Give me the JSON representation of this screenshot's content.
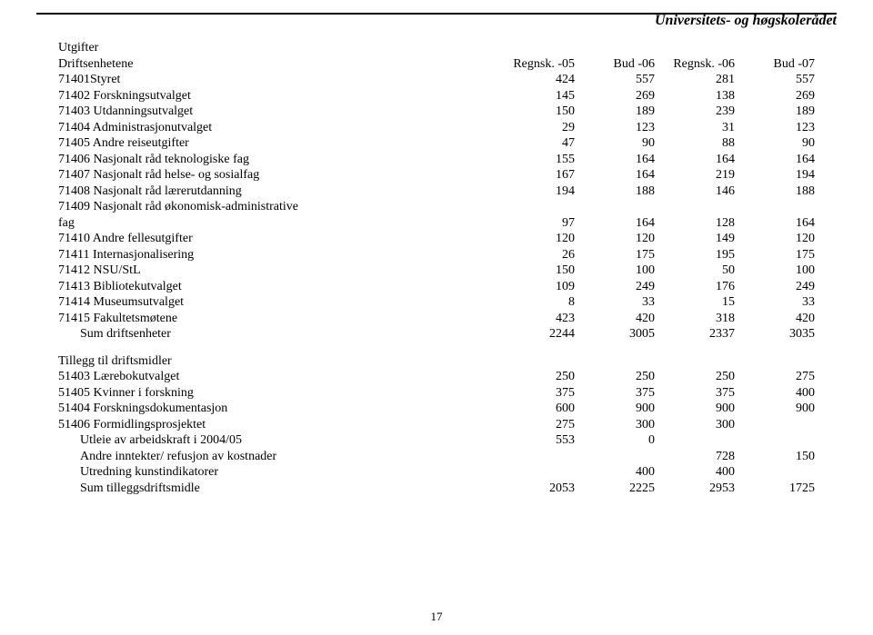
{
  "header_title": "Universitets- og høgskolerådet",
  "columns": {
    "c1": "Regnsk. -05",
    "c2": "Bud -06",
    "c3": "Regnsk. -06",
    "c4": "Bud -07"
  },
  "section1_title": "Utgifter",
  "section1_subtitle": "Driftsenhetene",
  "rows1": [
    {
      "label": "71401Styret",
      "v": [
        "424",
        "557",
        "281",
        "557"
      ]
    },
    {
      "label": "71402 Forskningsutvalget",
      "v": [
        "145",
        "269",
        "138",
        "269"
      ]
    },
    {
      "label": "71403 Utdanningsutvalget",
      "v": [
        "150",
        "189",
        "239",
        "189"
      ]
    },
    {
      "label": "71404 Administrasjonutvalget",
      "v": [
        "29",
        "123",
        "31",
        "123"
      ]
    },
    {
      "label": "71405 Andre reiseutgifter",
      "v": [
        "47",
        "90",
        "88",
        "90"
      ]
    },
    {
      "label": "71406 Nasjonalt råd teknologiske fag",
      "v": [
        "155",
        "164",
        "164",
        "164"
      ]
    },
    {
      "label": "71407 Nasjonalt råd helse- og sosialfag",
      "v": [
        "167",
        "164",
        "219",
        "194"
      ]
    },
    {
      "label": "71408 Nasjonalt råd lærerutdanning",
      "v": [
        "194",
        "188",
        "146",
        "188"
      ]
    },
    {
      "label": "71409 Nasjonalt råd økonomisk-administrative",
      "v": [
        "",
        "",
        "",
        ""
      ]
    },
    {
      "label": "fag",
      "v": [
        "97",
        "164",
        "128",
        "164"
      ]
    },
    {
      "label": "71410 Andre fellesutgifter",
      "v": [
        "120",
        "120",
        "149",
        "120"
      ]
    },
    {
      "label": "71411 Internasjonalisering",
      "v": [
        "26",
        "175",
        "195",
        "175"
      ]
    },
    {
      "label": "71412 NSU/StL",
      "v": [
        "150",
        "100",
        "50",
        "100"
      ]
    },
    {
      "label": "71413 Bibliotekutvalget",
      "v": [
        "109",
        "249",
        "176",
        "249"
      ]
    },
    {
      "label": "71414 Museumsutvalget",
      "v": [
        "8",
        "33",
        "15",
        "33"
      ]
    },
    {
      "label": "71415 Fakultetsmøtene",
      "v": [
        "423",
        "420",
        "318",
        "420"
      ]
    }
  ],
  "sum1": {
    "label": "Sum driftsenheter",
    "v": [
      "2244",
      "3005",
      "2337",
      "3035"
    ]
  },
  "section2_title": "Tillegg til driftsmidler",
  "rows2": [
    {
      "label": "51403 Lærebokutvalget",
      "v": [
        "250",
        "250",
        "250",
        "275"
      ]
    },
    {
      "label": "51405 Kvinner i forskning",
      "v": [
        "375",
        "375",
        "375",
        "400"
      ]
    },
    {
      "label": "51404 Forskningsdokumentasjon",
      "v": [
        "600",
        "900",
        "900",
        "900"
      ]
    },
    {
      "label": "51406 Formidlingsprosjektet",
      "v": [
        "275",
        "300",
        "300",
        ""
      ]
    }
  ],
  "rows2b": [
    {
      "label": "Utleie av arbeidskraft i 2004/05",
      "v": [
        "553",
        "0",
        "",
        ""
      ]
    },
    {
      "label": "Andre inntekter/ refusjon av kostnader",
      "v": [
        "",
        "",
        "728",
        "150"
      ]
    },
    {
      "label": "Utredning kunstindikatorer",
      "v": [
        "",
        "400",
        "400",
        ""
      ]
    }
  ],
  "sum2": {
    "label": "Sum tilleggsdriftsmidle",
    "v": [
      "2053",
      "2225",
      "2953",
      "1725"
    ]
  },
  "page_number": "17"
}
